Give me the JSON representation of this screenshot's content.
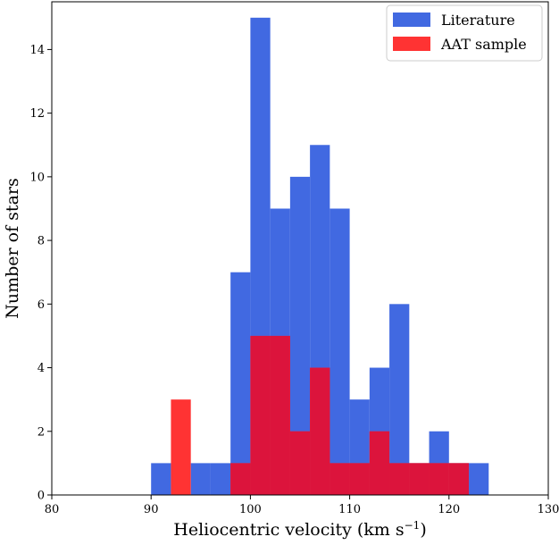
{
  "chart_data": {
    "type": "bar",
    "xlabel": "Heliocentric velocity (km s",
    "xlabel_sup": "−1",
    "xlabel_close": ")",
    "ylabel": "Number of stars",
    "xlim": [
      80,
      130
    ],
    "ylim": [
      0,
      15.5
    ],
    "x_ticks": [
      80,
      90,
      100,
      110,
      120,
      130
    ],
    "y_ticks": [
      0,
      2,
      4,
      6,
      8,
      10,
      12,
      14
    ],
    "bin_width": 2,
    "legend_position": "upper-right",
    "series": [
      {
        "name": "Literature",
        "color": "#4169E1",
        "bins": [
          {
            "x": 90,
            "count": 1
          },
          {
            "x": 92,
            "count": 0
          },
          {
            "x": 94,
            "count": 1
          },
          {
            "x": 96,
            "count": 1
          },
          {
            "x": 98,
            "count": 7
          },
          {
            "x": 100,
            "count": 15
          },
          {
            "x": 102,
            "count": 9
          },
          {
            "x": 104,
            "count": 10
          },
          {
            "x": 106,
            "count": 11
          },
          {
            "x": 108,
            "count": 9
          },
          {
            "x": 110,
            "count": 3
          },
          {
            "x": 112,
            "count": 4
          },
          {
            "x": 114,
            "count": 6
          },
          {
            "x": 116,
            "count": 1
          },
          {
            "x": 118,
            "count": 2
          },
          {
            "x": 120,
            "count": 1
          },
          {
            "x": 122,
            "count": 1
          }
        ]
      },
      {
        "name": "AAT sample",
        "color": "#FF3333",
        "bins": [
          {
            "x": 92,
            "count": 3
          },
          {
            "x": 98,
            "count": 1
          },
          {
            "x": 100,
            "count": 5
          },
          {
            "x": 102,
            "count": 5
          },
          {
            "x": 104,
            "count": 2
          },
          {
            "x": 106,
            "count": 4
          },
          {
            "x": 108,
            "count": 1
          },
          {
            "x": 110,
            "count": 1
          },
          {
            "x": 112,
            "count": 2
          },
          {
            "x": 114,
            "count": 1
          },
          {
            "x": 116,
            "count": 1
          },
          {
            "x": 118,
            "count": 1
          },
          {
            "x": 120,
            "count": 1
          }
        ]
      }
    ],
    "overlap_color": "#DC143C"
  }
}
